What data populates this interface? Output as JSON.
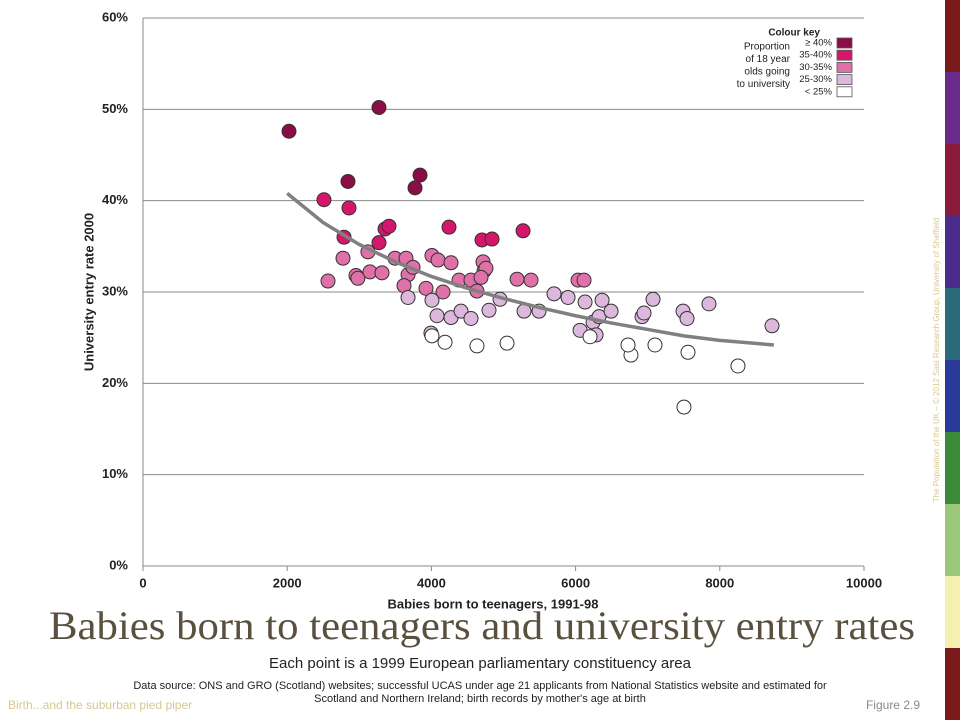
{
  "chart_data": {
    "type": "scatter",
    "title": "Babies born to teenagers and university entry rates",
    "subtitle": "Each point is a 1999 European parliamentary constituency area",
    "source": [
      "Data source: ONS and GRO (Scotland) websites; successful UCAS under age 21 applicants from National Statistics website and estimated for",
      "Scotland and Northern Ireland; birth records by mother's age at birth"
    ],
    "x_label": "Babies born to teenagers, 1991-98",
    "y_label": "University entry rate 2000",
    "legend_title": "Colour key",
    "legend_subtitle": [
      "Proportion",
      "of 18 year",
      "olds going",
      "to university"
    ],
    "xlim": [
      0,
      10000
    ],
    "xticks": [
      0,
      2000,
      4000,
      6000,
      8000,
      10000
    ],
    "ylim": [
      0,
      60
    ],
    "yticks": [
      {
        "value": 0,
        "label": "0%"
      },
      {
        "value": 10,
        "label": "10%"
      },
      {
        "value": 20,
        "label": "20%"
      },
      {
        "value": 30,
        "label": "30%"
      },
      {
        "value": 40,
        "label": "40%"
      },
      {
        "value": 50,
        "label": "50%"
      },
      {
        "value": 60,
        "label": "60%"
      }
    ],
    "series": [
      {
        "name": "≥ 40%",
        "color": "#8b0d45",
        "x": [
          2025,
          3273,
          2843,
          3842,
          3773
        ],
        "values": [
          47.6,
          50.2,
          42.1,
          42.8,
          41.4
        ]
      },
      {
        "name": "35-40%",
        "color": "#d4176c",
        "x": [
          2510,
          2857,
          2788,
          3273,
          3357,
          3412,
          4244,
          4702,
          4841,
          5271
        ],
        "values": [
          40.1,
          39.2,
          36.0,
          35.4,
          36.9,
          37.2,
          37.1,
          35.7,
          35.8,
          36.7
        ]
      },
      {
        "name": "30-35%",
        "color": "#e070a8",
        "x": [
          2566,
          2774,
          2954,
          2980,
          3120,
          3148,
          3315,
          3495,
          3648,
          3676,
          3745,
          3620,
          3925,
          4008,
          4092,
          4161,
          4272,
          4383,
          4549,
          4632,
          4716,
          4730,
          4757,
          4688,
          5188,
          5382,
          6034,
          6117
        ],
        "values": [
          31.2,
          33.7,
          31.8,
          31.5,
          34.4,
          32.2,
          32.1,
          33.7,
          33.7,
          31.9,
          32.7,
          30.7,
          30.4,
          34.0,
          33.5,
          30.0,
          33.2,
          31.3,
          31.3,
          30.1,
          33.3,
          32.3,
          32.6,
          31.6,
          31.4,
          31.3,
          31.3,
          31.3
        ]
      },
      {
        "name": "25-30%",
        "color": "#dcb8dc",
        "x": [
          3676,
          4008,
          4078,
          4272,
          4411,
          4549,
          4799,
          4952,
          5285,
          5493,
          5701,
          5895,
          6131,
          6062,
          6242,
          6284,
          6325,
          6367,
          6492,
          6921,
          6949,
          7074,
          7490,
          7545,
          7850,
          8724,
          3994
        ],
        "values": [
          29.4,
          29.1,
          27.4,
          27.2,
          27.9,
          27.1,
          28.0,
          29.2,
          27.9,
          27.9,
          29.8,
          29.4,
          28.9,
          25.8,
          26.7,
          25.3,
          27.3,
          29.1,
          27.9,
          27.3,
          27.7,
          29.2,
          27.9,
          27.1,
          28.7,
          26.3,
          25.5
        ]
      },
      {
        "name": "< 25%",
        "color": "#ffffff",
        "x": [
          4008,
          4189,
          4632,
          5049,
          6200,
          7101,
          6768,
          6727,
          7559,
          8252,
          7503
        ],
        "values": [
          25.2,
          24.5,
          24.1,
          24.4,
          25.1,
          24.2,
          23.1,
          24.2,
          23.4,
          21.9,
          17.4
        ]
      }
    ],
    "trend": {
      "color": "#808080",
      "x": [
        2000,
        2500,
        3000,
        3500,
        4000,
        4500,
        5000,
        5500,
        6000,
        6500,
        7000,
        7500,
        8000,
        8750
      ],
      "values": [
        40.8,
        37.6,
        35.2,
        33.3,
        31.7,
        30.4,
        29.3,
        28.3,
        27.4,
        26.6,
        25.9,
        25.2,
        24.7,
        24.2
      ]
    }
  },
  "footer": {
    "left": "Birth...and the suburban pied piper",
    "right": "Figure 2.9",
    "credit": "The Population of the UK – © 2012 Sasi Research Group, University of Sheffield"
  }
}
